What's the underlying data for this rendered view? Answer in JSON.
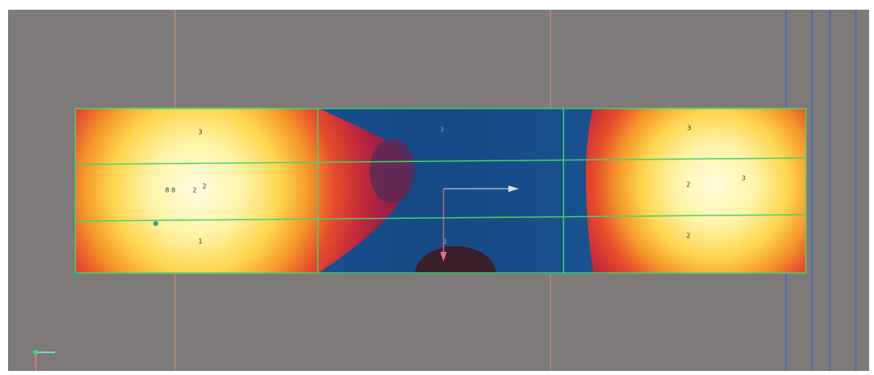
{
  "viewport": {
    "background": "#7d7a79",
    "grid_color": "#b98c73",
    "mesh_color": "#43d36f"
  },
  "region_labels": [
    {
      "id": "top-left",
      "text": "3"
    },
    {
      "id": "mid-left",
      "text": "2"
    },
    {
      "id": "bottom-left",
      "text": "1"
    },
    {
      "id": "top-center",
      "text": "3"
    },
    {
      "id": "center-bottom",
      "text": "1"
    },
    {
      "id": "top-right",
      "text": "3"
    },
    {
      "id": "mid-right",
      "text": "2"
    },
    {
      "id": "mid-right-b",
      "text": "3"
    },
    {
      "id": "bottom-right",
      "text": "2"
    }
  ],
  "node_markers": {
    "left_pair": "8 8",
    "left_single": "2"
  },
  "icons": {
    "move_arrow": "arrow-right-icon",
    "down_arrow": "arrow-down-icon",
    "corner_axes": "xyz-axes-icon"
  }
}
